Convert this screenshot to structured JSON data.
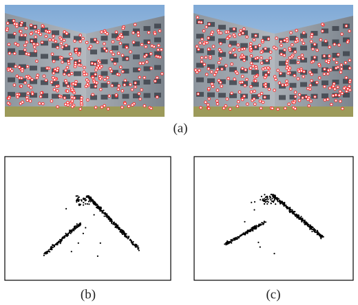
{
  "panels": [
    {
      "label": "(a)"
    },
    {
      "label": "(b)"
    },
    {
      "label": "(c)"
    }
  ]
}
